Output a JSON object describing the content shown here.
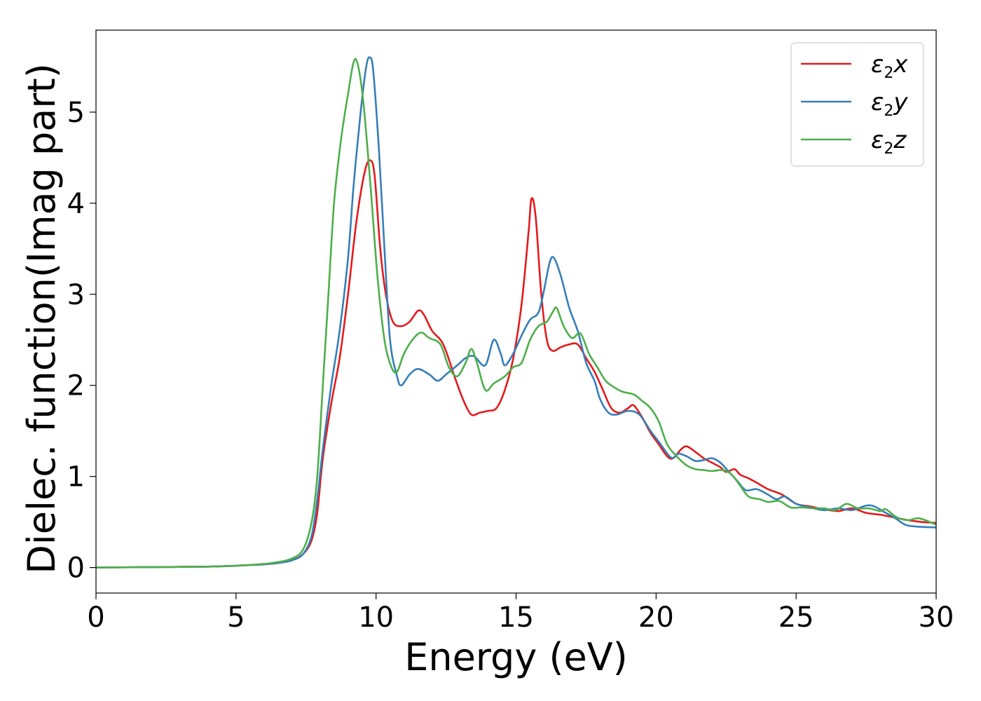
{
  "chart_data": {
    "type": "line",
    "title": "",
    "xlabel": "Energy (eV)",
    "ylabel": "Dielec. function(Imag part)",
    "xlim": [
      0,
      30
    ],
    "ylim": [
      -0.28,
      5.9
    ],
    "xticks": [
      0,
      5,
      10,
      15,
      20,
      25,
      30
    ],
    "yticks": [
      0,
      1,
      2,
      3,
      4,
      5
    ],
    "grid": false,
    "legend_position": "top-right",
    "series": [
      {
        "name": "ε2x",
        "legend_main": "ε",
        "legend_sub": "2",
        "legend_suffix": "x",
        "color": "#e41a1c",
        "points": [
          [
            0,
            0.0
          ],
          [
            2,
            0.005
          ],
          [
            4,
            0.01
          ],
          [
            5,
            0.02
          ],
          [
            6,
            0.035
          ],
          [
            6.5,
            0.05
          ],
          [
            7,
            0.08
          ],
          [
            7.4,
            0.15
          ],
          [
            7.7,
            0.3
          ],
          [
            7.9,
            0.6
          ],
          [
            8.1,
            1.2
          ],
          [
            8.4,
            1.8
          ],
          [
            8.7,
            2.3
          ],
          [
            9.0,
            3.0
          ],
          [
            9.3,
            3.8
          ],
          [
            9.6,
            4.35
          ],
          [
            9.8,
            4.47
          ],
          [
            9.95,
            4.3
          ],
          [
            10.15,
            3.5
          ],
          [
            10.35,
            3.0
          ],
          [
            10.6,
            2.7
          ],
          [
            10.9,
            2.65
          ],
          [
            11.2,
            2.7
          ],
          [
            11.5,
            2.82
          ],
          [
            11.7,
            2.78
          ],
          [
            12.0,
            2.6
          ],
          [
            12.4,
            2.45
          ],
          [
            12.8,
            2.1
          ],
          [
            13.1,
            1.85
          ],
          [
            13.4,
            1.68
          ],
          [
            13.7,
            1.7
          ],
          [
            14.0,
            1.72
          ],
          [
            14.3,
            1.75
          ],
          [
            14.6,
            1.95
          ],
          [
            14.9,
            2.3
          ],
          [
            15.2,
            2.9
          ],
          [
            15.45,
            3.7
          ],
          [
            15.55,
            4.05
          ],
          [
            15.7,
            3.85
          ],
          [
            15.9,
            3.0
          ],
          [
            16.1,
            2.5
          ],
          [
            16.3,
            2.38
          ],
          [
            16.6,
            2.42
          ],
          [
            16.9,
            2.45
          ],
          [
            17.2,
            2.45
          ],
          [
            17.5,
            2.3
          ],
          [
            17.8,
            2.15
          ],
          [
            18.1,
            1.95
          ],
          [
            18.4,
            1.75
          ],
          [
            18.7,
            1.7
          ],
          [
            19.0,
            1.75
          ],
          [
            19.2,
            1.78
          ],
          [
            19.5,
            1.65
          ],
          [
            19.8,
            1.48
          ],
          [
            20.1,
            1.35
          ],
          [
            20.4,
            1.22
          ],
          [
            20.6,
            1.2
          ],
          [
            20.9,
            1.3
          ],
          [
            21.1,
            1.33
          ],
          [
            21.4,
            1.27
          ],
          [
            21.7,
            1.2
          ],
          [
            22.0,
            1.15
          ],
          [
            22.3,
            1.1
          ],
          [
            22.5,
            1.05
          ],
          [
            22.8,
            1.08
          ],
          [
            23.0,
            1.02
          ],
          [
            23.3,
            0.98
          ],
          [
            23.6,
            0.93
          ],
          [
            24.0,
            0.86
          ],
          [
            24.5,
            0.8
          ],
          [
            25.0,
            0.7
          ],
          [
            25.5,
            0.67
          ],
          [
            26.0,
            0.64
          ],
          [
            26.5,
            0.62
          ],
          [
            27.0,
            0.65
          ],
          [
            27.5,
            0.6
          ],
          [
            28.0,
            0.58
          ],
          [
            28.5,
            0.55
          ],
          [
            29.0,
            0.52
          ],
          [
            29.5,
            0.5
          ],
          [
            30,
            0.49
          ]
        ]
      },
      {
        "name": "ε2y",
        "legend_main": "ε",
        "legend_sub": "2",
        "legend_suffix": "y",
        "color": "#377eb8",
        "points": [
          [
            0,
            0.0
          ],
          [
            2,
            0.005
          ],
          [
            4,
            0.01
          ],
          [
            5,
            0.02
          ],
          [
            6,
            0.035
          ],
          [
            6.5,
            0.05
          ],
          [
            7,
            0.08
          ],
          [
            7.4,
            0.15
          ],
          [
            7.7,
            0.35
          ],
          [
            7.9,
            0.75
          ],
          [
            8.1,
            1.3
          ],
          [
            8.4,
            2.0
          ],
          [
            8.7,
            2.6
          ],
          [
            9.0,
            3.4
          ],
          [
            9.2,
            4.2
          ],
          [
            9.45,
            5.0
          ],
          [
            9.65,
            5.5
          ],
          [
            9.78,
            5.6
          ],
          [
            9.9,
            5.45
          ],
          [
            10.1,
            4.6
          ],
          [
            10.3,
            3.5
          ],
          [
            10.5,
            2.5
          ],
          [
            10.75,
            2.1
          ],
          [
            10.9,
            2.0
          ],
          [
            11.2,
            2.12
          ],
          [
            11.5,
            2.18
          ],
          [
            11.9,
            2.12
          ],
          [
            12.2,
            2.05
          ],
          [
            12.5,
            2.12
          ],
          [
            12.9,
            2.22
          ],
          [
            13.2,
            2.3
          ],
          [
            13.5,
            2.32
          ],
          [
            13.9,
            2.22
          ],
          [
            14.2,
            2.5
          ],
          [
            14.45,
            2.35
          ],
          [
            14.6,
            2.22
          ],
          [
            14.9,
            2.35
          ],
          [
            15.2,
            2.55
          ],
          [
            15.5,
            2.72
          ],
          [
            15.8,
            2.8
          ],
          [
            16.0,
            3.05
          ],
          [
            16.2,
            3.35
          ],
          [
            16.35,
            3.4
          ],
          [
            16.6,
            3.2
          ],
          [
            16.9,
            2.85
          ],
          [
            17.2,
            2.6
          ],
          [
            17.5,
            2.25
          ],
          [
            17.8,
            2.05
          ],
          [
            18.0,
            1.85
          ],
          [
            18.3,
            1.7
          ],
          [
            18.6,
            1.68
          ],
          [
            19.0,
            1.72
          ],
          [
            19.4,
            1.68
          ],
          [
            19.8,
            1.5
          ],
          [
            20.1,
            1.38
          ],
          [
            20.4,
            1.25
          ],
          [
            20.6,
            1.2
          ],
          [
            20.8,
            1.25
          ],
          [
            21.1,
            1.22
          ],
          [
            21.4,
            1.17
          ],
          [
            21.7,
            1.18
          ],
          [
            22.0,
            1.2
          ],
          [
            22.3,
            1.15
          ],
          [
            22.6,
            1.05
          ],
          [
            22.9,
            0.95
          ],
          [
            23.2,
            0.85
          ],
          [
            23.6,
            0.86
          ],
          [
            24.0,
            0.8
          ],
          [
            24.3,
            0.75
          ],
          [
            24.6,
            0.78
          ],
          [
            25.0,
            0.7
          ],
          [
            25.5,
            0.66
          ],
          [
            26.0,
            0.63
          ],
          [
            26.5,
            0.65
          ],
          [
            27.0,
            0.63
          ],
          [
            27.5,
            0.68
          ],
          [
            27.8,
            0.67
          ],
          [
            28.2,
            0.6
          ],
          [
            28.5,
            0.55
          ],
          [
            28.9,
            0.47
          ],
          [
            29.3,
            0.45
          ],
          [
            30,
            0.44
          ]
        ]
      },
      {
        "name": "ε2z",
        "legend_main": "ε",
        "legend_sub": "2",
        "legend_suffix": "z",
        "color": "#4daf4a",
        "points": [
          [
            0,
            0.0
          ],
          [
            2,
            0.005
          ],
          [
            4,
            0.01
          ],
          [
            5,
            0.02
          ],
          [
            6,
            0.04
          ],
          [
            6.5,
            0.06
          ],
          [
            7,
            0.1
          ],
          [
            7.4,
            0.2
          ],
          [
            7.7,
            0.5
          ],
          [
            7.9,
            1.0
          ],
          [
            8.1,
            2.0
          ],
          [
            8.3,
            3.0
          ],
          [
            8.5,
            4.0
          ],
          [
            8.75,
            4.7
          ],
          [
            9.0,
            5.2
          ],
          [
            9.2,
            5.55
          ],
          [
            9.35,
            5.52
          ],
          [
            9.55,
            5.1
          ],
          [
            9.8,
            4.2
          ],
          [
            10.05,
            3.2
          ],
          [
            10.3,
            2.5
          ],
          [
            10.55,
            2.2
          ],
          [
            10.75,
            2.15
          ],
          [
            11.0,
            2.35
          ],
          [
            11.3,
            2.5
          ],
          [
            11.6,
            2.58
          ],
          [
            11.9,
            2.52
          ],
          [
            12.3,
            2.45
          ],
          [
            12.6,
            2.2
          ],
          [
            12.9,
            2.1
          ],
          [
            13.2,
            2.25
          ],
          [
            13.4,
            2.4
          ],
          [
            13.6,
            2.25
          ],
          [
            13.9,
            1.95
          ],
          [
            14.2,
            2.02
          ],
          [
            14.6,
            2.1
          ],
          [
            14.9,
            2.2
          ],
          [
            15.2,
            2.25
          ],
          [
            15.5,
            2.5
          ],
          [
            15.8,
            2.65
          ],
          [
            16.1,
            2.7
          ],
          [
            16.3,
            2.8
          ],
          [
            16.45,
            2.85
          ],
          [
            16.7,
            2.65
          ],
          [
            17.0,
            2.52
          ],
          [
            17.3,
            2.57
          ],
          [
            17.6,
            2.35
          ],
          [
            17.9,
            2.2
          ],
          [
            18.2,
            2.05
          ],
          [
            18.5,
            1.98
          ],
          [
            18.8,
            1.93
          ],
          [
            19.2,
            1.9
          ],
          [
            19.5,
            1.83
          ],
          [
            19.8,
            1.75
          ],
          [
            20.1,
            1.6
          ],
          [
            20.4,
            1.35
          ],
          [
            20.8,
            1.2
          ],
          [
            21.1,
            1.12
          ],
          [
            21.4,
            1.08
          ],
          [
            21.7,
            1.07
          ],
          [
            22.0,
            1.06
          ],
          [
            22.4,
            1.07
          ],
          [
            22.7,
            1.02
          ],
          [
            23.0,
            0.9
          ],
          [
            23.3,
            0.78
          ],
          [
            23.7,
            0.75
          ],
          [
            24.0,
            0.72
          ],
          [
            24.4,
            0.73
          ],
          [
            24.8,
            0.66
          ],
          [
            25.2,
            0.66
          ],
          [
            25.6,
            0.65
          ],
          [
            26.0,
            0.65
          ],
          [
            26.4,
            0.63
          ],
          [
            26.8,
            0.7
          ],
          [
            27.2,
            0.65
          ],
          [
            27.6,
            0.65
          ],
          [
            28.0,
            0.62
          ],
          [
            28.2,
            0.64
          ],
          [
            28.6,
            0.55
          ],
          [
            29.0,
            0.52
          ],
          [
            29.4,
            0.54
          ],
          [
            30,
            0.47
          ]
        ]
      }
    ]
  }
}
